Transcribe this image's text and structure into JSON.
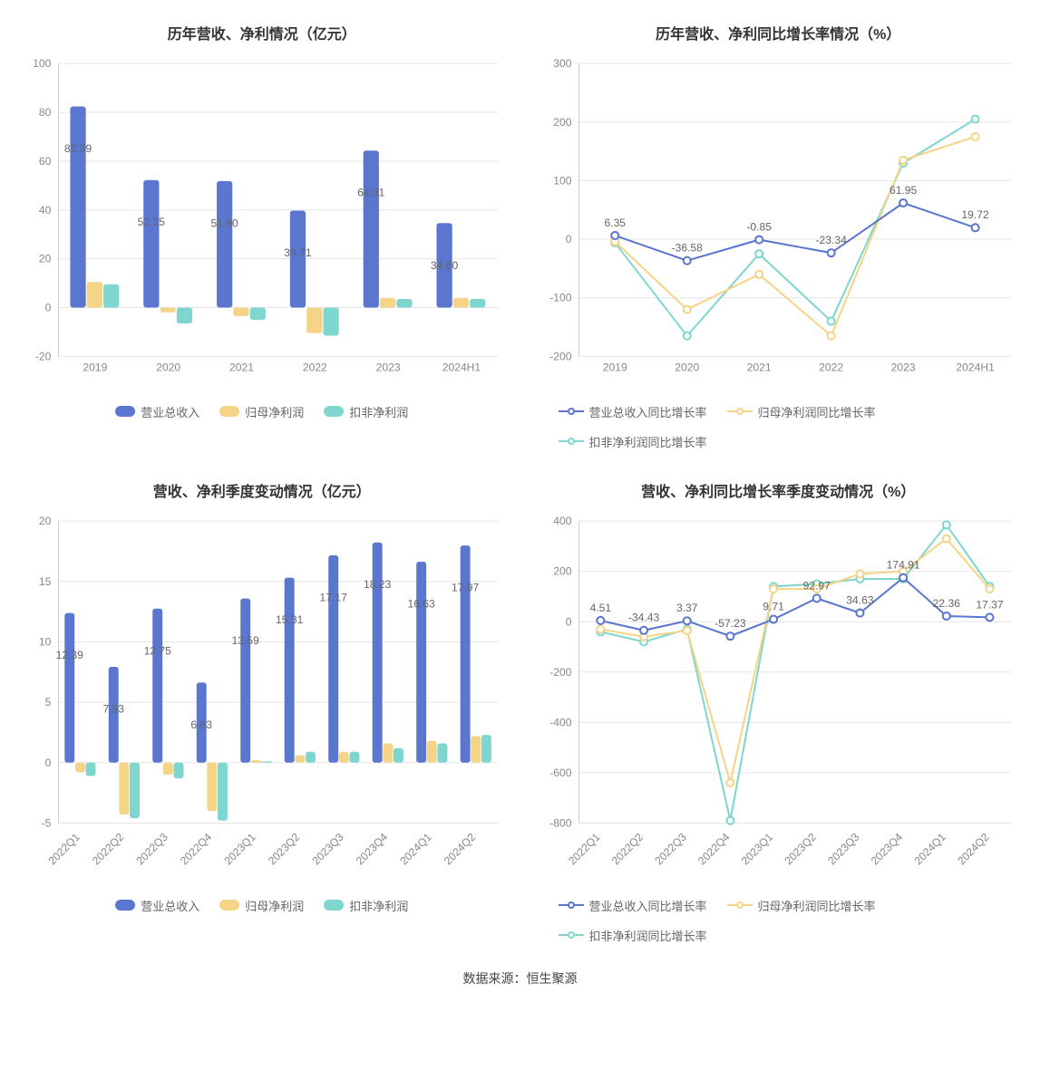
{
  "colors": {
    "s1": "#5b76cf",
    "s2": "#f5d487",
    "s3": "#7fd6cf",
    "grid": "#e6e6e6",
    "axis": "#cccccc",
    "axis_text": "#888888",
    "val_text": "#666666",
    "title": "#333333",
    "bg": "#ffffff"
  },
  "chart1": {
    "title": "历年营收、净利情况（亿元）",
    "type": "bar",
    "categories": [
      "2019",
      "2020",
      "2021",
      "2022",
      "2023",
      "2024H1"
    ],
    "series": [
      {
        "name": "营业总收入",
        "colorKey": "s1",
        "values": [
          82.39,
          52.25,
          51.8,
          39.71,
          64.31,
          34.6
        ]
      },
      {
        "name": "归母净利润",
        "colorKey": "s2",
        "values": [
          10.5,
          -2.0,
          -3.5,
          -10.5,
          4.0,
          4.0
        ]
      },
      {
        "name": "扣非净利润",
        "colorKey": "s3",
        "values": [
          9.5,
          -6.5,
          -5.0,
          -11.5,
          3.5,
          3.5
        ]
      }
    ],
    "value_labels": [
      "82.39",
      "52.25",
      "51.80",
      "39.71",
      "64.31",
      "34.60"
    ],
    "ylim": [
      -20,
      100
    ],
    "ytick_step": 20,
    "title_fontsize": 16,
    "label_fontsize": 12,
    "bar_group_width": 0.68,
    "bar_radius": 3
  },
  "chart2": {
    "title": "历年营收、净利同比增长率情况（%）",
    "type": "line",
    "categories": [
      "2019",
      "2020",
      "2021",
      "2022",
      "2023",
      "2024H1"
    ],
    "series": [
      {
        "name": "营业总收入同比增长率",
        "colorKey": "s1",
        "values": [
          6.35,
          -36.58,
          -0.85,
          -23.34,
          61.95,
          19.72
        ]
      },
      {
        "name": "归母净利润同比增长率",
        "colorKey": "s2",
        "values": [
          -4,
          -120,
          -60,
          -165,
          135,
          175
        ]
      },
      {
        "name": "扣非净利润同比增长率",
        "colorKey": "s3",
        "values": [
          -6,
          -165,
          -25,
          -140,
          130,
          205
        ]
      }
    ],
    "value_labels": [
      "6.35",
      "-36.58",
      "-0.85",
      "-23.34",
      "61.95",
      "19.72"
    ],
    "ylim": [
      -200,
      300
    ],
    "ytick_step": 100,
    "title_fontsize": 16,
    "label_fontsize": 12,
    "marker_radius": 4,
    "line_width": 2
  },
  "chart3": {
    "title": "营收、净利季度变动情况（亿元）",
    "type": "bar",
    "categories": [
      "2022Q1",
      "2022Q2",
      "2022Q3",
      "2022Q4",
      "2023Q1",
      "2023Q2",
      "2023Q3",
      "2023Q4",
      "2024Q1",
      "2024Q2"
    ],
    "series": [
      {
        "name": "营业总收入",
        "colorKey": "s1",
        "values": [
          12.39,
          7.93,
          12.75,
          6.63,
          13.59,
          15.31,
          17.17,
          18.23,
          16.63,
          17.97
        ]
      },
      {
        "name": "归母净利润",
        "colorKey": "s2",
        "values": [
          -0.8,
          -4.3,
          -1.0,
          -4.0,
          0.2,
          0.6,
          0.9,
          1.6,
          1.8,
          2.2
        ]
      },
      {
        "name": "扣非净利润",
        "colorKey": "s3",
        "values": [
          -1.1,
          -4.6,
          -1.3,
          -4.8,
          0.1,
          0.9,
          0.9,
          1.2,
          1.6,
          2.3
        ]
      }
    ],
    "value_labels": [
      "12.39",
      "7.93",
      "12.75",
      "6.63",
      "13.59",
      "15.31",
      "17.17",
      "18.23",
      "16.63",
      "17.97"
    ],
    "ylim": [
      -5,
      20
    ],
    "ytick_step": 5,
    "title_fontsize": 16,
    "label_fontsize": 12,
    "bar_group_width": 0.72,
    "bar_radius": 3,
    "rotate_x_labels": -45
  },
  "chart4": {
    "title": "营收、净利同比增长率季度变动情况（%）",
    "type": "line",
    "categories": [
      "2022Q1",
      "2022Q2",
      "2022Q3",
      "2022Q4",
      "2023Q1",
      "2023Q2",
      "2023Q3",
      "2023Q4",
      "2024Q1",
      "2024Q2"
    ],
    "series": [
      {
        "name": "营业总收入同比增长率",
        "colorKey": "s1",
        "values": [
          4.51,
          -34.43,
          3.37,
          -57.23,
          9.71,
          92.97,
          34.63,
          174.91,
          22.36,
          17.37
        ]
      },
      {
        "name": "归母净利润同比增长率",
        "colorKey": "s2",
        "values": [
          -30,
          -60,
          -35,
          -640,
          130,
          130,
          190,
          200,
          330,
          130
        ]
      },
      {
        "name": "扣非净利润同比增长率",
        "colorKey": "s3",
        "values": [
          -40,
          -80,
          -30,
          -790,
          140,
          150,
          170,
          170,
          385,
          140
        ]
      }
    ],
    "value_labels": [
      "4.51",
      "-34.43",
      "3.37",
      "-57.23",
      "9.71",
      "92.97",
      "34.63",
      "174.91",
      "22.36",
      "17.37"
    ],
    "ylim": [
      -800,
      400
    ],
    "ytick_step": 200,
    "title_fontsize": 16,
    "label_fontsize": 12,
    "marker_radius": 4,
    "line_width": 2,
    "rotate_x_labels": -45
  },
  "legend_bar": [
    "营业总收入",
    "归母净利润",
    "扣非净利润"
  ],
  "legend_line": [
    "营业总收入同比增长率",
    "归母净利润同比增长率",
    "扣非净利润同比增长率"
  ],
  "footer": "数据来源：恒生聚源"
}
